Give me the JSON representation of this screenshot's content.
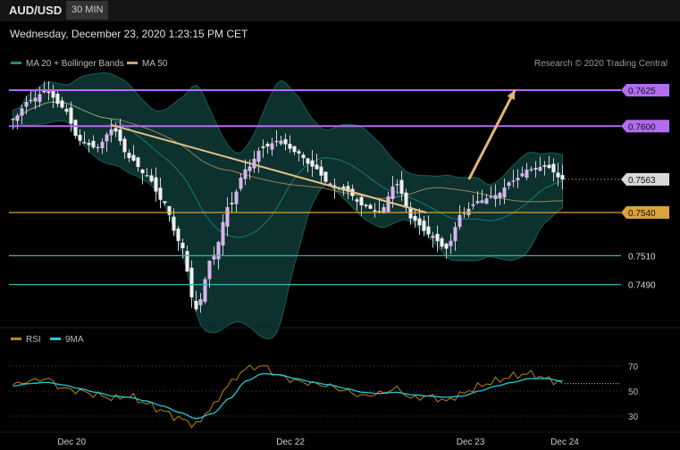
{
  "header": {
    "symbol": "AUD/USD",
    "timeframe": "30 MIN"
  },
  "datetime": "Wednesday, December 23, 2020 1:23:15 PM CET",
  "legend": {
    "bb_label": "MA 20 + Bollinger Bands",
    "ma50_label": "MA 50",
    "bb_color": "#1a8f8a",
    "ma50_color": "#c8a878"
  },
  "credit": "Research © 2020 Trading Central",
  "rsi_legend": {
    "rsi_label": "RSI",
    "ma_label": "9MA",
    "rsi_color": "#b8860b",
    "ma_color": "#29c6d4"
  },
  "chart_data": [
    {
      "type": "line",
      "title": "AUD/USD 30 MIN",
      "ylim": [
        0.746,
        0.7638
      ],
      "x_labels": [
        "Dec 20",
        "Dec 22",
        "Dec 23",
        "Dec 24"
      ],
      "levels": [
        {
          "value": 0.7625,
          "label": "0.7625",
          "color": "#b36cf0",
          "kind": "resistance"
        },
        {
          "value": 0.76,
          "label": "0.7600",
          "color": "#b36cf0",
          "kind": "resistance"
        },
        {
          "value": 0.7563,
          "label": "0.7563",
          "color": "#d9d9d9",
          "kind": "last-price"
        },
        {
          "value": 0.754,
          "label": "0.7540",
          "color": "#d9a23a",
          "kind": "pivot"
        },
        {
          "value": 0.751,
          "label": "0.7510",
          "color": "#2fb8b0",
          "kind": "support"
        },
        {
          "value": 0.749,
          "label": "0.7490",
          "color": "#2fb8b0",
          "kind": "support"
        }
      ],
      "price_anchors": [
        0.7605,
        0.7618,
        0.7624,
        0.7613,
        0.759,
        0.7585,
        0.7598,
        0.7578,
        0.7566,
        0.7548,
        0.752,
        0.7473,
        0.751,
        0.7545,
        0.757,
        0.7585,
        0.759,
        0.7582,
        0.7572,
        0.756,
        0.7555,
        0.7545,
        0.754,
        0.756,
        0.7535,
        0.7525,
        0.7515,
        0.754,
        0.7548,
        0.7552,
        0.7562,
        0.757,
        0.7572,
        0.7563
      ],
      "trendline": {
        "from": [
          0.18,
          0.7601
        ],
        "to": [
          0.75,
          0.754
        ]
      },
      "projection": {
        "from": [
          0.827,
          0.7563
        ],
        "to": [
          0.91,
          0.7625
        ]
      }
    },
    {
      "type": "line",
      "title": "RSI",
      "ylim": [
        20,
        80
      ],
      "y_ticks": [
        70,
        50,
        30
      ],
      "series": [
        {
          "name": "RSI",
          "anchors": [
            55,
            58,
            60,
            52,
            50,
            47,
            44,
            46,
            40,
            34,
            28,
            23,
            38,
            56,
            68,
            70,
            62,
            58,
            56,
            54,
            50,
            46,
            48,
            52,
            44,
            46,
            42,
            48,
            54,
            58,
            62,
            64,
            60,
            56
          ]
        },
        {
          "name": "9MA",
          "anchors": [
            54,
            56,
            57,
            55,
            52,
            49,
            46,
            45,
            42,
            38,
            33,
            28,
            32,
            44,
            58,
            64,
            63,
            60,
            57,
            55,
            52,
            49,
            48,
            49,
            47,
            46,
            45,
            46,
            50,
            54,
            57,
            60,
            60,
            58
          ]
        }
      ]
    }
  ]
}
